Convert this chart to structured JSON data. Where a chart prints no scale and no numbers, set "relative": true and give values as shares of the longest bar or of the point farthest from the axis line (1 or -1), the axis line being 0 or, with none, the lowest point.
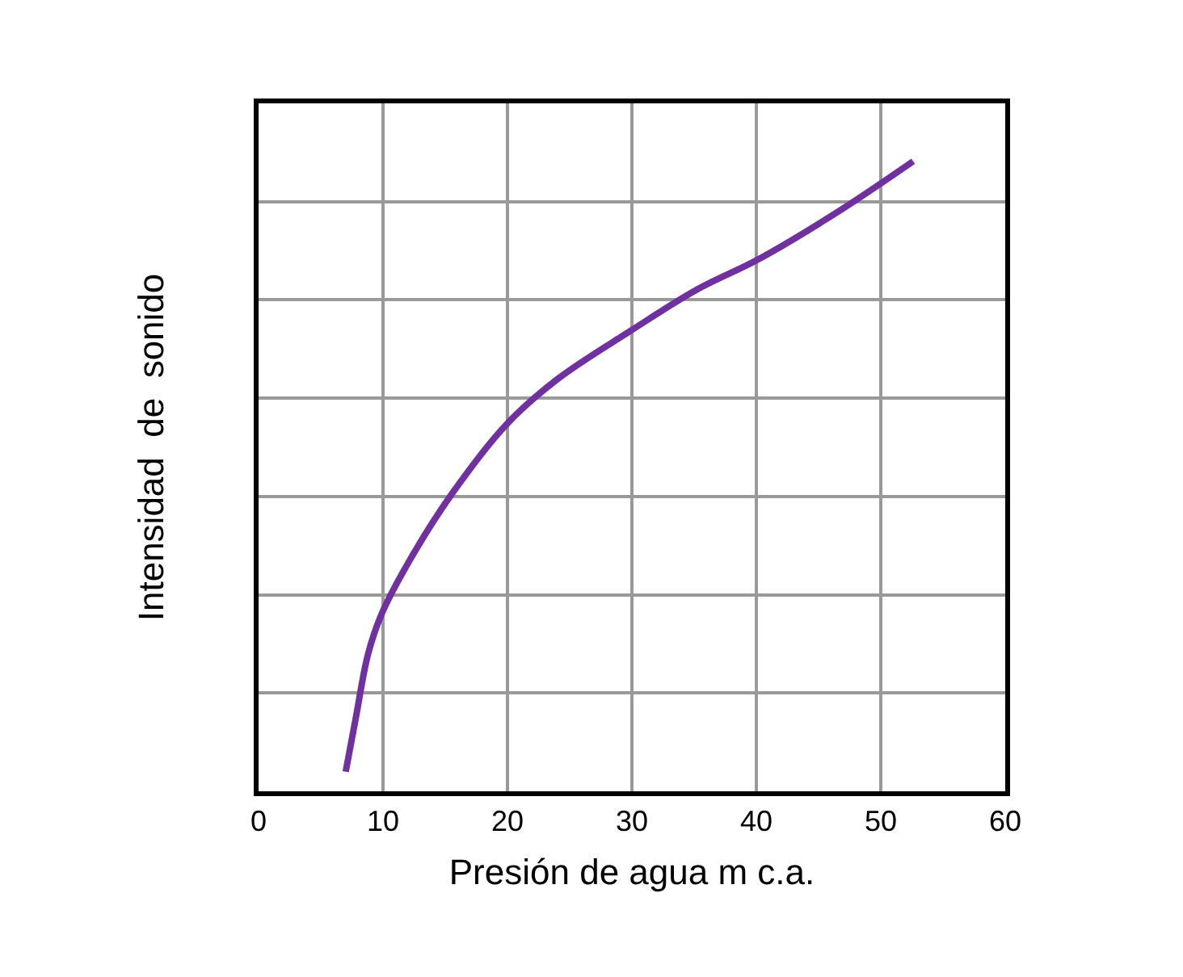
{
  "chart_data": {
    "type": "line",
    "xlabel": "Presión de agua m c.a.",
    "ylabel": "Intensidad  de  sonido",
    "relative": true,
    "grid": true,
    "xlim": [
      0,
      60
    ],
    "xticks": [
      0,
      10,
      20,
      30,
      40,
      50,
      60
    ],
    "tick_labels": "x",
    "series": [
      {
        "color": "#7030a0",
        "x": [
          7.0,
          7.8,
          8.8,
          9.9,
          12.3,
          15.6,
          19.9,
          24.0,
          29.9,
          35.1,
          40.3,
          46.8,
          52.6
        ],
        "values": [
          0.031,
          0.115,
          0.218,
          0.282,
          0.372,
          0.474,
          0.582,
          0.654,
          0.731,
          0.795,
          0.846,
          0.923,
          1.0
        ]
      }
    ]
  }
}
